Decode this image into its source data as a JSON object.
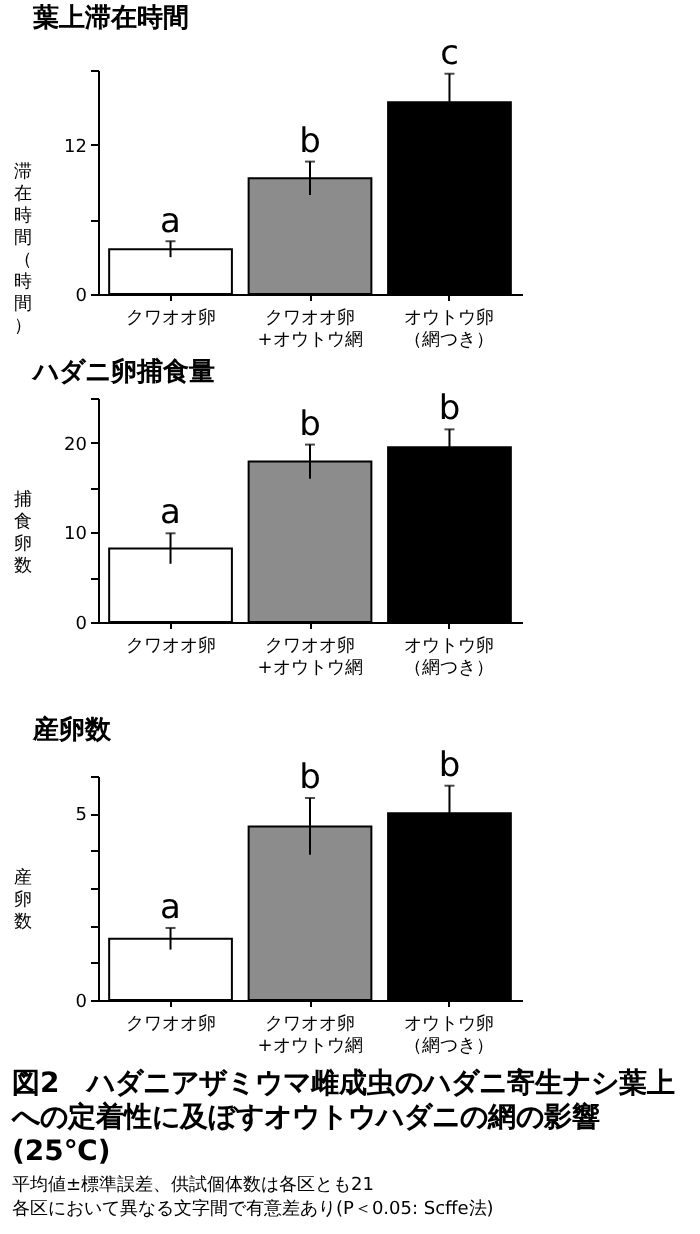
{
  "chart_data": [
    {
      "type": "bar",
      "title": "葉上滞在時間",
      "ylabel": "滞在時間（時間）",
      "categories": [
        "クワオオ卵",
        "クワオオ卵+オウトウ網",
        "オウトウ卵（網つき）"
      ],
      "values": [
        3.6,
        9.3,
        15.4
      ],
      "errors": [
        0.64,
        1.34,
        2.3
      ],
      "colors": [
        "#ffffff",
        "#8c8c8c",
        "#000000"
      ],
      "ylim": [
        0,
        18
      ],
      "yticks": [
        0,
        {
          "value": 6,
          "label": null
        },
        12,
        {
          "value": 18,
          "label": null
        }
      ],
      "annotations": [
        {
          "text": "a",
          "x": "クワオオ卵",
          "y": 4.2
        },
        {
          "text": "b",
          "x": "クワオオ卵+オウトウ網",
          "y": 10.6
        },
        {
          "text": "c",
          "x": "オウトウ卵（網つき）",
          "y": 17.7
        }
      ]
    },
    {
      "type": "bar",
      "title": "ハダニ卵捕食量",
      "ylabel": "捕食卵数",
      "categories": [
        "クワオオ卵",
        "クワオオ卵+オウトウ網",
        "オウトウ卵（網つき）"
      ],
      "values": [
        8.2,
        17.9,
        19.5
      ],
      "errors": [
        1.7,
        1.9,
        2.0
      ],
      "colors": [
        "#ffffff",
        "#8c8c8c",
        "#000000"
      ],
      "ylim": [
        0,
        25
      ],
      "yticks": [
        0,
        {
          "value": 5,
          "label": null
        },
        10,
        {
          "value": 15,
          "label": null
        },
        20,
        {
          "value": 25,
          "label": null
        }
      ],
      "annotations": [
        {
          "text": "a",
          "x": "クワオオ卵",
          "y": 9.9
        },
        {
          "text": "b",
          "x": "クワオオ卵+オウトウ網",
          "y": 19.8
        },
        {
          "text": "b",
          "x": "オウトウ卵（網つき）",
          "y": 21.5
        }
      ]
    },
    {
      "type": "bar",
      "title": "産卵数",
      "ylabel": "産卵数",
      "categories": [
        "クワオオ卵",
        "クワオオ卵+オウトウ網",
        "オウトウ卵（網つき）"
      ],
      "values": [
        1.64,
        4.65,
        5.0
      ],
      "errors": [
        0.29,
        0.76,
        0.74
      ],
      "colors": [
        "#ffffff",
        "#8c8c8c",
        "#000000"
      ],
      "ylim": [
        0,
        6
      ],
      "yticks": [
        0,
        {
          "value": 1,
          "label": null
        },
        {
          "value": 2,
          "label": null
        },
        {
          "value": 3,
          "label": null
        },
        {
          "value": 4,
          "label": null
        },
        5,
        {
          "value": 6,
          "label": null
        }
      ],
      "annotations": [
        {
          "text": "a",
          "x": "クワオオ卵",
          "y": 1.93
        },
        {
          "text": "b",
          "x": "クワオオ卵+オウトウ網",
          "y": 5.41
        },
        {
          "text": "b",
          "x": "オウトウ卵（網つき）",
          "y": 5.74
        },
        "図2　ハダニアザミウマ雌成虫のハダニ寄生ナシ葉上への定着性に及ぼすオウトウハダニの網の影響(25℃)",
        "平均値±標準誤差、供試個体数は各区とも21",
        "各区において異なる文字間で有意差あり(P＜0.05: Scffe法)"
      ]
    }
  ]
}
